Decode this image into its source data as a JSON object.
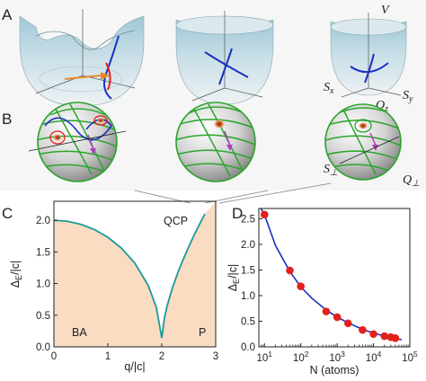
{
  "panel_labels": {
    "a": "A",
    "b": "B",
    "c": "C",
    "d": "D"
  },
  "panel_a": {
    "axis_labels": {
      "v": "V",
      "sx": "S",
      "sx_sub": "x",
      "sy": "S",
      "sy_sub": "y",
      "qz": "Q",
      "qz_sub": "z"
    }
  },
  "panel_b": {
    "axis_labels": {
      "s_perp": "S",
      "s_perp_sub": "⊥",
      "q_perp": "Q",
      "q_perp_sub": "⊥"
    }
  },
  "colors": {
    "teal_curve": "#1a9a9a",
    "region_fill": "#f9dcc2",
    "fit_curve": "#1c2fc0",
    "data_points": "#e2211c",
    "sphere_lines": "#2aa52a",
    "trajectory_blue": "#1c2fc0",
    "arrow_orange": "#e58a2b",
    "arrow_magenta": "#b53ac0"
  },
  "chart_data": [
    {
      "type": "line",
      "panel": "C",
      "xlabel": "q/|c|",
      "ylabel": "Δ_E/|c|",
      "xlim": [
        0,
        3
      ],
      "ylim": [
        0,
        2.3
      ],
      "xticks": [
        "0",
        "1",
        "2",
        "3"
      ],
      "yticks": [
        "0.0",
        "0.5",
        "1.0",
        "1.5",
        "2.0"
      ],
      "annotations": {
        "left_region": "BA",
        "right_region": "P",
        "critical_point": "QCP"
      },
      "critical_q": 2.0,
      "series": [
        {
          "x": [
            0,
            0.25,
            0.5,
            0.75,
            1.0,
            1.25,
            1.5,
            1.75,
            1.9,
            2.0
          ],
          "y": [
            2.0,
            1.984,
            1.936,
            1.854,
            1.732,
            1.561,
            1.323,
            0.968,
            0.62,
            0.14
          ]
        },
        {
          "x": [
            2.0,
            2.05,
            2.1,
            2.2,
            2.3,
            2.4,
            2.5,
            2.6,
            2.7,
            2.8
          ],
          "y": [
            0.14,
            0.46,
            0.648,
            0.938,
            1.178,
            1.386,
            1.581,
            1.766,
            1.936,
            2.1
          ]
        }
      ]
    },
    {
      "type": "scatter",
      "panel": "D",
      "xlabel": "N (atoms)",
      "ylabel": "Δ_E/|c|",
      "xscale": "log",
      "xlim": [
        7,
        100000
      ],
      "ylim": [
        0,
        2.7
      ],
      "xticks": [
        {
          "base": "10",
          "exp": "1"
        },
        {
          "base": "10",
          "exp": "2"
        },
        {
          "base": "10",
          "exp": "3"
        },
        {
          "base": "10",
          "exp": "4"
        },
        {
          "base": "10",
          "exp": "5"
        }
      ],
      "yticks": [
        "0.0",
        "0.5",
        "1.0",
        "1.5",
        "2.0",
        "2.5"
      ],
      "points": {
        "x": [
          10,
          50,
          100,
          500,
          1000,
          2000,
          5000,
          10000,
          20000,
          30000,
          40000
        ],
        "y": [
          2.58,
          1.49,
          1.18,
          0.69,
          0.58,
          0.46,
          0.33,
          0.25,
          0.21,
          0.19,
          0.17
        ]
      },
      "fit": {
        "x": [
          8,
          10,
          20,
          50,
          100,
          200,
          500,
          1000,
          2000,
          5000,
          10000,
          20000,
          40000,
          60000
        ],
        "y": [
          2.88,
          2.58,
          1.98,
          1.47,
          1.17,
          0.95,
          0.72,
          0.58,
          0.47,
          0.34,
          0.27,
          0.21,
          0.16,
          0.14
        ]
      }
    }
  ]
}
